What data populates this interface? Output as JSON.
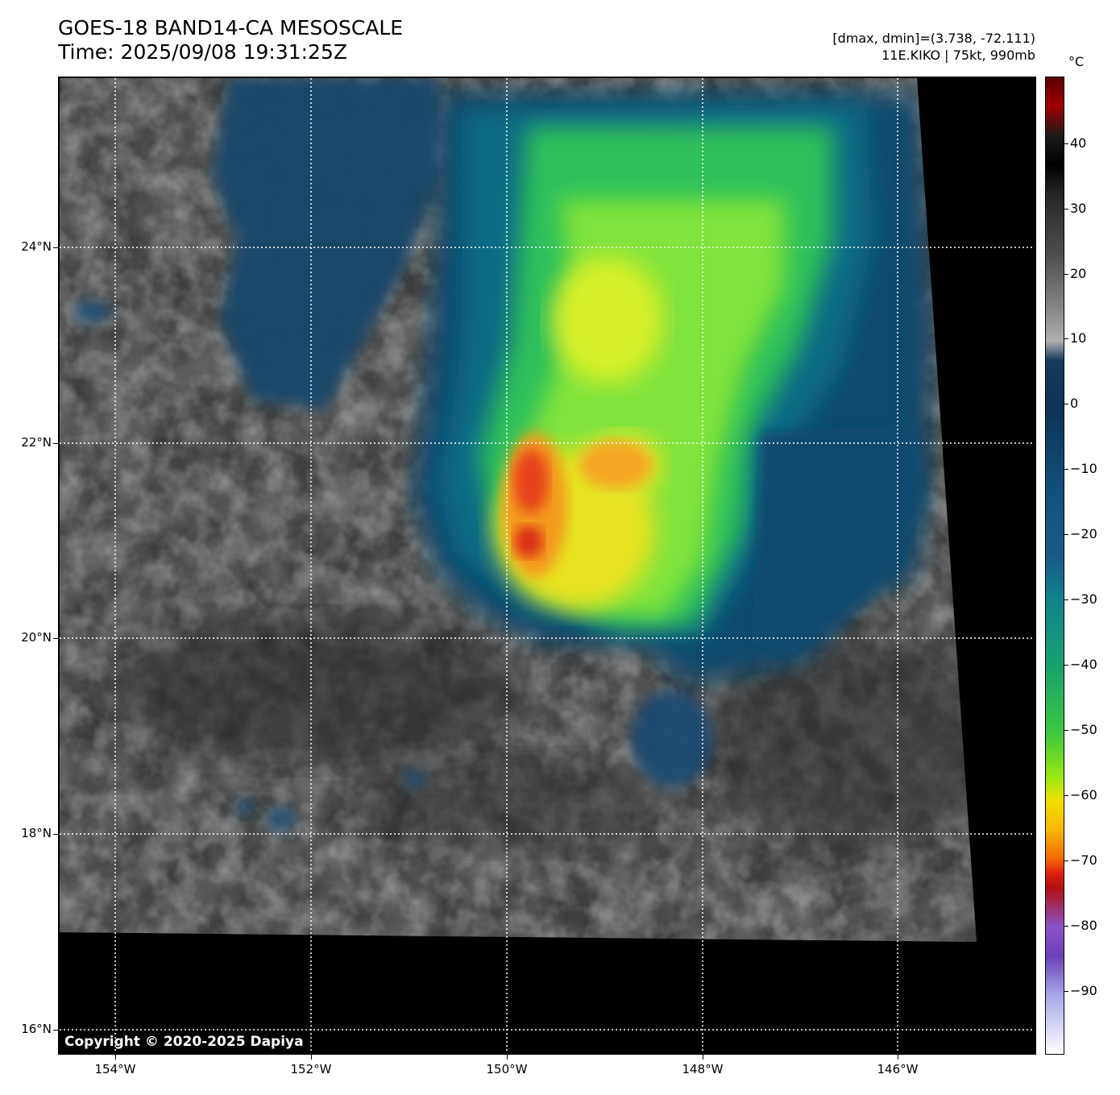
{
  "header": {
    "title_line1": "GOES-18 BAND14-CA MESOSCALE",
    "title_line2": "Time: 2025/09/08 19:31:25Z",
    "dmax_dmin": "[dmax, dmin]=(3.738, -72.111)",
    "storm_info": "11E.KIKO | 75kt, 990mb"
  },
  "map": {
    "copyright": "Copyright © 2020-2025 Dapiya",
    "lat_labels": [
      "24°N",
      "22°N",
      "20°N",
      "18°N",
      "16°N"
    ],
    "lon_labels": [
      "154°W",
      "152°W",
      "150°W",
      "148°W",
      "146°W"
    ]
  },
  "colorbar": {
    "unit": "°C",
    "tick_labels": [
      "40",
      "30",
      "20",
      "10",
      "0",
      "−10",
      "−20",
      "−30",
      "−40",
      "−50",
      "−60",
      "−70",
      "−80",
      "−90"
    ],
    "range": [
      -100,
      50
    ]
  }
}
